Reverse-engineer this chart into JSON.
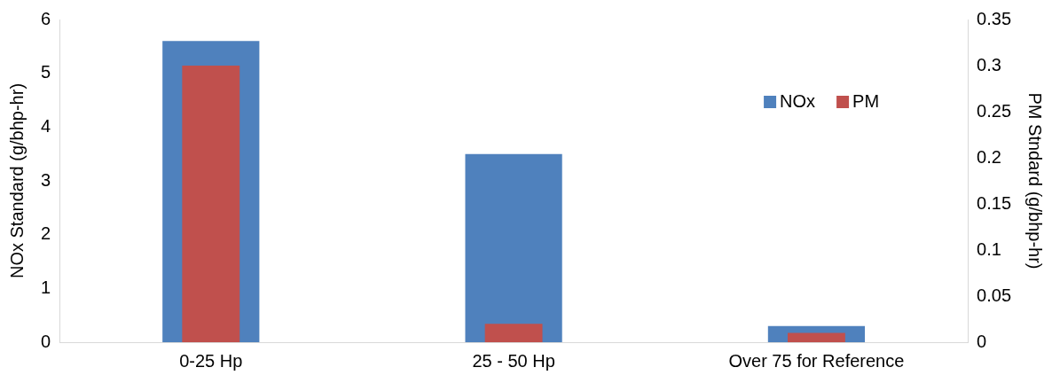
{
  "chart_data": {
    "type": "bar",
    "ylabel": "NOx Standard (g/bhp-hr)",
    "y2label": "PM Stndard (g/bhp-hr)",
    "categories": [
      "0-25 Hp",
      "25 - 50 Hp",
      "Over 75 for Reference"
    ],
    "series": [
      {
        "name": "NOx",
        "color": "#4f81bd",
        "values": [
          5.6,
          3.5,
          0.3
        ]
      },
      {
        "name": "PM",
        "color": "#c0504d",
        "values": [
          0.3,
          0.02,
          0.01
        ],
        "axis": "y2"
      }
    ],
    "ylim": [
      0,
      6
    ],
    "yticks": [
      0,
      1,
      2,
      3,
      4,
      5,
      6
    ],
    "y2lim": [
      0,
      0.35
    ],
    "y2ticks": [
      0,
      0.05,
      0.1,
      0.15,
      0.2,
      0.25,
      0.3,
      0.35
    ],
    "grid": false,
    "legend": "top right"
  }
}
